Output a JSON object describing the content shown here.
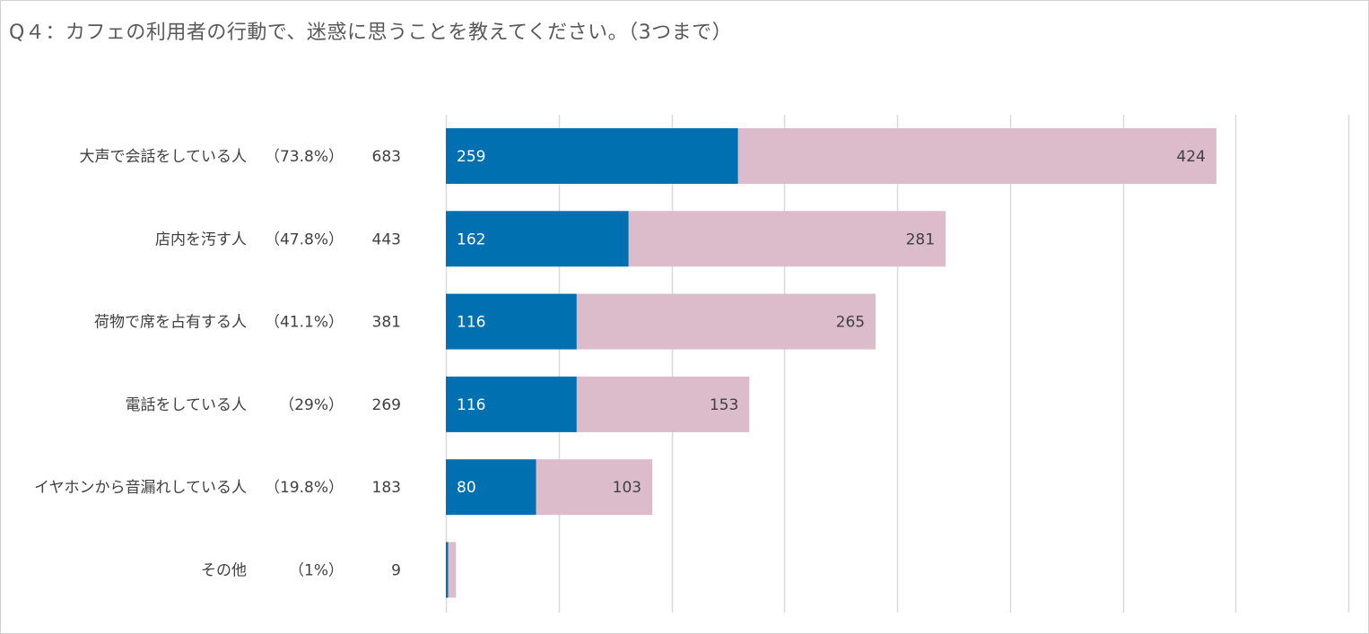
{
  "chart_data": {
    "type": "bar",
    "orientation": "horizontal",
    "stacked": true,
    "title": "Q４：カフェの利用者の行動で、迷惑に思うことを教えてください。（3つまで）",
    "categories": [
      "大声で会話をしている人",
      "店内を汚す人",
      "荷物で席を占有する人",
      "電話をしている人",
      "イヤホンから音漏れしている人",
      "その他"
    ],
    "percent_labels": [
      "（73.8%）",
      "（47.8%）",
      "（41.1%）",
      "（29%）",
      "（19.8%）",
      "（1%）"
    ],
    "totals": [
      683,
      443,
      381,
      269,
      183,
      9
    ],
    "series": [
      {
        "name": "series-1",
        "color": "#0070b0",
        "label_color": "#ffffff",
        "values": [
          259,
          162,
          116,
          116,
          80,
          2
        ]
      },
      {
        "name": "series-2",
        "color": "#dcbccb",
        "label_color": "#404040",
        "values": [
          424,
          281,
          265,
          153,
          103,
          7
        ]
      }
    ],
    "show_value_labels": [
      true,
      true,
      true,
      true,
      true,
      false
    ],
    "xlim": [
      0,
      800
    ],
    "x_gridline_step": 100,
    "grid": true,
    "legend": "none"
  }
}
